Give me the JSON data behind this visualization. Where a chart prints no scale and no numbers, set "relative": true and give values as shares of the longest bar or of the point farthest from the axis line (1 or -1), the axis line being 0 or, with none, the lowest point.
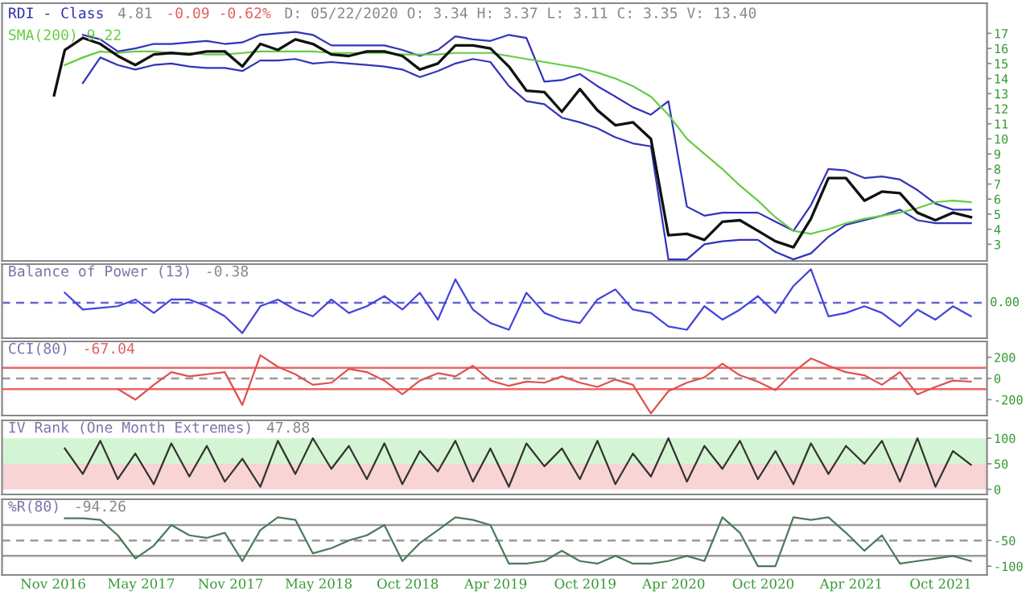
{
  "chart_data": [
    {
      "type": "line",
      "title": "RDI - Class",
      "annotations": [
        "4.81",
        "-0.09 -0.62%",
        "D: 05/22/2020 O: 3.34 H: 3.37 L: 3.11 C: 3.35 V: 13.40"
      ],
      "x": [
        "2016-11-25",
        "2017-01-01",
        "2017-02-06",
        "2017-03-14",
        "2017-04-19",
        "2017-05-27",
        "2017-07-02",
        "2017-08-08",
        "2017-09-13",
        "2017-10-20",
        "2017-11-25",
        "2018-01-01",
        "2018-02-06",
        "2018-03-14",
        "2018-04-19",
        "2018-05-27",
        "2018-07-02",
        "2018-08-08",
        "2018-09-13",
        "2018-10-20",
        "2018-11-25",
        "2019-01-01",
        "2019-02-06",
        "2019-03-14",
        "2019-04-19",
        "2019-05-27",
        "2019-07-02",
        "2019-08-08",
        "2019-09-13",
        "2019-10-20",
        "2019-11-25",
        "2020-01-01",
        "2020-02-06",
        "2020-03-14",
        "2020-04-19",
        "2020-05-27",
        "2020-07-02",
        "2020-08-08",
        "2020-09-13",
        "2020-10-20",
        "2020-11-25",
        "2021-01-01",
        "2021-02-06",
        "2021-03-14",
        "2021-04-19",
        "2021-05-27",
        "2021-07-02",
        "2021-08-08",
        "2021-09-13",
        "2021-10-20",
        "2021-11-25",
        "2022-01-01"
      ],
      "series": [
        {
          "color": "#3333bb",
          "values": [
            null,
            16.9,
            16.6,
            15.8,
            16.0,
            16.3,
            16.3,
            16.4,
            16.5,
            16.3,
            16.4,
            16.9,
            17.0,
            17.1,
            16.9,
            16.2,
            16.2,
            16.2,
            16.2,
            15.9,
            15.5,
            15.9,
            16.8,
            16.6,
            16.5,
            16.9,
            16.7,
            13.8,
            13.9,
            14.3,
            13.5,
            12.8,
            12.1,
            11.6,
            12.5,
            5.5,
            4.9,
            5.1,
            5.1,
            5.1,
            4.5,
            3.9,
            5.6,
            8.0,
            7.9,
            7.4,
            7.5,
            7.3,
            6.6,
            5.7,
            5.3,
            5.3
          ]
        },
        {
          "color": "#3333bb",
          "values": [
            null,
            13.7,
            15.4,
            14.9,
            14.6,
            14.9,
            15.0,
            14.8,
            14.7,
            14.7,
            14.5,
            15.2,
            15.2,
            15.3,
            15.0,
            15.1,
            15.0,
            14.9,
            14.8,
            14.6,
            14.1,
            14.5,
            15.0,
            15.3,
            15.1,
            13.5,
            12.5,
            12.3,
            11.4,
            11.1,
            10.7,
            10.1,
            9.7,
            9.5,
            2.0,
            2.0,
            3.0,
            3.2,
            3.3,
            3.3,
            2.5,
            2.0,
            2.4,
            3.5,
            4.3,
            4.6,
            4.9,
            5.3,
            4.6,
            4.4,
            4.4,
            4.4
          ]
        },
        {
          "name": "SMA(200) 9.22",
          "color": "#66cc44",
          "values": [
            14.9,
            15.4,
            15.8,
            15.7,
            15.8,
            15.8,
            15.7,
            15.7,
            15.6,
            15.6,
            15.7,
            15.8,
            15.8,
            15.8,
            15.8,
            15.7,
            15.7,
            15.7,
            15.7,
            15.6,
            15.6,
            15.6,
            15.7,
            15.7,
            15.7,
            15.5,
            15.3,
            15.1,
            14.9,
            14.7,
            14.4,
            14.0,
            13.5,
            12.8,
            11.6,
            10.0,
            9.0,
            8.0,
            6.9,
            5.9,
            4.8,
            3.9,
            3.7,
            4.0,
            4.4,
            4.7,
            4.9,
            5.1,
            5.4,
            5.8,
            5.9,
            5.8
          ]
        },
        {
          "color": "#111111",
          "x": [
            "2016-11-03",
            "2016-11-25",
            "2017-01-01",
            "2017-02-06",
            "2017-03-14",
            "2017-04-19",
            "2017-05-27",
            "2017-07-02",
            "2017-08-08",
            "2017-09-13",
            "2017-10-20",
            "2017-11-25",
            "2018-01-01",
            "2018-02-06",
            "2018-03-14",
            "2018-04-19",
            "2018-05-27",
            "2018-07-02",
            "2018-08-08",
            "2018-09-13",
            "2018-10-20",
            "2018-11-25",
            "2019-01-01",
            "2019-02-06",
            "2019-03-14",
            "2019-04-19",
            "2019-05-27",
            "2019-07-02",
            "2019-08-08",
            "2019-09-13",
            "2019-10-20",
            "2019-11-25",
            "2020-01-01",
            "2020-02-06",
            "2020-03-14",
            "2020-04-19",
            "2020-05-27",
            "2020-07-02",
            "2020-08-08",
            "2020-09-13",
            "2020-10-20",
            "2020-11-25",
            "2021-01-01",
            "2021-02-06",
            "2021-03-14",
            "2021-04-19",
            "2021-05-27",
            "2021-07-02",
            "2021-08-08",
            "2021-09-13",
            "2021-10-20",
            "2021-11-25",
            "2022-01-01"
          ],
          "values": [
            12.9,
            15.9,
            16.7,
            16.3,
            15.5,
            14.9,
            15.6,
            15.7,
            15.6,
            15.8,
            15.8,
            14.8,
            16.3,
            15.9,
            16.6,
            16.3,
            15.6,
            15.5,
            15.8,
            15.8,
            15.5,
            14.6,
            15.0,
            16.2,
            16.2,
            16.0,
            14.8,
            13.2,
            13.1,
            11.8,
            13.3,
            11.9,
            10.9,
            11.1,
            10.0,
            3.6,
            3.7,
            3.3,
            4.5,
            4.6,
            3.9,
            3.2,
            2.8,
            4.7,
            7.4,
            7.4,
            5.9,
            6.5,
            6.4,
            5.1,
            4.6,
            5.1,
            4.8
          ]
        }
      ],
      "xlim": [
        "2016-07-19",
        "2022-02-03"
      ],
      "ylim": [
        1.9,
        19
      ],
      "yticks": [
        3,
        4,
        5,
        6,
        7,
        8,
        9,
        10,
        11,
        12,
        13,
        14,
        15,
        16,
        17
      ],
      "tick_labels": "y"
    },
    {
      "type": "line",
      "title": "Balance of Power (13)",
      "annotations": [
        "-0.38"
      ],
      "relative": true,
      "x": [
        "2016-11-25",
        "2017-01-01",
        "2017-02-06",
        "2017-03-14",
        "2017-04-19",
        "2017-05-27",
        "2017-07-02",
        "2017-08-08",
        "2017-09-13",
        "2017-10-20",
        "2017-11-25",
        "2018-01-01",
        "2018-02-06",
        "2018-03-14",
        "2018-04-19",
        "2018-05-27",
        "2018-07-02",
        "2018-08-08",
        "2018-09-13",
        "2018-10-20",
        "2018-11-25",
        "2019-01-01",
        "2019-02-06",
        "2019-03-14",
        "2019-04-19",
        "2019-05-27",
        "2019-07-02",
        "2019-08-08",
        "2019-09-13",
        "2019-10-20",
        "2019-11-25",
        "2020-01-01",
        "2020-02-06",
        "2020-03-14",
        "2020-04-19",
        "2020-05-27",
        "2020-07-02",
        "2020-08-08",
        "2020-09-13",
        "2020-10-20",
        "2020-11-25",
        "2021-01-01",
        "2021-02-06",
        "2021-03-14",
        "2021-04-19",
        "2021-05-27",
        "2021-07-02",
        "2021-08-08",
        "2021-09-13",
        "2021-10-20",
        "2021-11-25",
        "2022-01-01"
      ],
      "series": [
        {
          "color": "#4444dd",
          "values": [
            0.3,
            -0.2,
            -0.15,
            -0.1,
            0.1,
            -0.3,
            0.1,
            0.1,
            -0.1,
            -0.4,
            -0.9,
            -0.1,
            0.1,
            -0.2,
            -0.4,
            0.1,
            -0.3,
            -0.1,
            0.2,
            -0.2,
            0.3,
            -0.5,
            0.7,
            -0.2,
            -0.6,
            -0.8,
            0.3,
            -0.3,
            -0.5,
            -0.6,
            0.1,
            0.4,
            -0.2,
            -0.3,
            -0.7,
            -0.8,
            -0.1,
            -0.5,
            -0.2,
            0.2,
            -0.3,
            0.5,
            1.0,
            -0.4,
            -0.3,
            -0.1,
            -0.3,
            -0.7,
            -0.2,
            -0.5,
            -0.1,
            -0.4
          ]
        }
      ],
      "ref_lines": [
        {
          "axis": "y",
          "value": 0,
          "label": "0.00",
          "color": "#6666cc",
          "line_style": "dashed"
        }
      ],
      "xlim": [
        "2016-07-19",
        "2022-02-03"
      ],
      "tick_labels": "y"
    },
    {
      "type": "line",
      "title": "CCI(80)",
      "annotations": [
        "-67.04"
      ],
      "x": [
        "2017-03-14",
        "2017-04-19",
        "2017-05-27",
        "2017-07-02",
        "2017-08-08",
        "2017-09-13",
        "2017-10-20",
        "2017-11-25",
        "2018-01-01",
        "2018-02-06",
        "2018-03-14",
        "2018-04-19",
        "2018-05-27",
        "2018-07-02",
        "2018-08-08",
        "2018-09-13",
        "2018-10-20",
        "2018-11-25",
        "2019-01-01",
        "2019-02-06",
        "2019-03-14",
        "2019-04-19",
        "2019-05-27",
        "2019-07-02",
        "2019-08-08",
        "2019-09-13",
        "2019-10-20",
        "2019-11-25",
        "2020-01-01",
        "2020-02-06",
        "2020-03-14",
        "2020-04-19",
        "2020-05-27",
        "2020-07-02",
        "2020-08-08",
        "2020-09-13",
        "2020-10-20",
        "2020-11-25",
        "2021-01-01",
        "2021-02-06",
        "2021-03-14",
        "2021-04-19",
        "2021-05-27",
        "2021-07-02",
        "2021-08-08",
        "2021-09-13",
        "2021-10-20",
        "2021-11-25",
        "2022-01-01"
      ],
      "series": [
        {
          "color": "#e05050",
          "values": [
            -100,
            -200,
            -60,
            60,
            20,
            40,
            60,
            -250,
            220,
            110,
            40,
            -60,
            -40,
            90,
            60,
            -20,
            -150,
            -20,
            50,
            20,
            120,
            -20,
            -70,
            -30,
            -40,
            20,
            -40,
            -80,
            -10,
            -60,
            -330,
            -120,
            -40,
            10,
            140,
            30,
            -30,
            -110,
            60,
            190,
            120,
            60,
            30,
            -60,
            60,
            -150,
            -80,
            -20,
            -30
          ]
        }
      ],
      "ref_lines": [
        {
          "axis": "y",
          "value": 100,
          "color": "#ee6666",
          "line_style": "solid"
        },
        {
          "axis": "y",
          "value": 0,
          "color": "#999999",
          "line_style": "dashed"
        },
        {
          "axis": "y",
          "value": -100,
          "color": "#ee6666",
          "line_style": "solid"
        }
      ],
      "xlim": [
        "2016-07-19",
        "2022-02-03"
      ],
      "ylim": [
        -350,
        350
      ],
      "yticks": [
        -200,
        0,
        200
      ],
      "tick_labels": "y"
    },
    {
      "type": "line",
      "title": "IV Rank (One Month Extremes)",
      "annotations": [
        "47.88"
      ],
      "x": [
        "2016-11-25",
        "2017-01-01",
        "2017-02-06",
        "2017-03-14",
        "2017-04-19",
        "2017-05-27",
        "2017-07-02",
        "2017-08-08",
        "2017-09-13",
        "2017-10-20",
        "2017-11-25",
        "2018-01-01",
        "2018-02-06",
        "2018-03-14",
        "2018-04-19",
        "2018-05-27",
        "2018-07-02",
        "2018-08-08",
        "2018-09-13",
        "2018-10-20",
        "2018-11-25",
        "2019-01-01",
        "2019-02-06",
        "2019-03-14",
        "2019-04-19",
        "2019-05-27",
        "2019-07-02",
        "2019-08-08",
        "2019-09-13",
        "2019-10-20",
        "2019-11-25",
        "2020-01-01",
        "2020-02-06",
        "2020-03-14",
        "2020-04-19",
        "2020-05-27",
        "2020-07-02",
        "2020-08-08",
        "2020-09-13",
        "2020-10-20",
        "2020-11-25",
        "2021-01-01",
        "2021-02-06",
        "2021-03-14",
        "2021-04-19",
        "2021-05-27",
        "2021-07-02",
        "2021-08-08",
        "2021-09-13",
        "2021-10-20",
        "2021-11-25",
        "2022-01-01"
      ],
      "series": [
        {
          "color": "#333333",
          "values": [
            80,
            30,
            95,
            20,
            70,
            10,
            90,
            25,
            85,
            15,
            60,
            5,
            95,
            30,
            100,
            40,
            85,
            20,
            90,
            10,
            75,
            35,
            95,
            15,
            80,
            5,
            90,
            45,
            80,
            20,
            95,
            10,
            70,
            25,
            100,
            15,
            85,
            40,
            95,
            20,
            75,
            10,
            90,
            30,
            85,
            50,
            95,
            15,
            100,
            5,
            75,
            48
          ]
        }
      ],
      "bands": [
        {
          "axis": "y",
          "from": 50,
          "to": 100,
          "color": "#d4f5d4"
        },
        {
          "axis": "y",
          "from": 0,
          "to": 50,
          "color": "#f8d4d4"
        }
      ],
      "xlim": [
        "2016-07-19",
        "2022-02-03"
      ],
      "ylim": [
        -10,
        135
      ],
      "yticks": [
        0,
        50,
        100
      ],
      "tick_labels": "y"
    },
    {
      "type": "line",
      "title": "%R(80)",
      "annotations": [
        "-94.26"
      ],
      "x": [
        "2016-11-25",
        "2017-01-01",
        "2017-02-06",
        "2017-03-14",
        "2017-04-19",
        "2017-05-27",
        "2017-07-02",
        "2017-08-08",
        "2017-09-13",
        "2017-10-20",
        "2017-11-25",
        "2018-01-01",
        "2018-02-06",
        "2018-03-14",
        "2018-04-19",
        "2018-05-27",
        "2018-07-02",
        "2018-08-08",
        "2018-09-13",
        "2018-10-20",
        "2018-11-25",
        "2019-01-01",
        "2019-02-06",
        "2019-03-14",
        "2019-04-19",
        "2019-05-27",
        "2019-07-02",
        "2019-08-08",
        "2019-09-13",
        "2019-10-20",
        "2019-11-25",
        "2020-01-01",
        "2020-02-06",
        "2020-03-14",
        "2020-04-19",
        "2020-05-27",
        "2020-07-02",
        "2020-08-08",
        "2020-09-13",
        "2020-10-20",
        "2020-11-25",
        "2021-01-01",
        "2021-02-06",
        "2021-03-14",
        "2021-04-19",
        "2021-05-27",
        "2021-07-02",
        "2021-08-08",
        "2021-09-13",
        "2021-10-20",
        "2021-11-25",
        "2022-01-01"
      ],
      "series": [
        {
          "color": "#4a7a5a",
          "values": [
            -7,
            -7,
            -10,
            -40,
            -85,
            -60,
            -20,
            -40,
            -45,
            -35,
            -90,
            -30,
            -5,
            -10,
            -75,
            -65,
            -50,
            -40,
            -20,
            -90,
            -55,
            -30,
            -5,
            -10,
            -20,
            -95,
            -95,
            -90,
            -70,
            -90,
            -95,
            -80,
            -95,
            -95,
            -90,
            -80,
            -90,
            -5,
            -35,
            -100,
            -100,
            -5,
            -10,
            -5,
            -35,
            -70,
            -40,
            -95,
            -90,
            -85,
            -80,
            -90
          ]
        }
      ],
      "ref_lines": [
        {
          "axis": "y",
          "value": -20,
          "color": "#999999",
          "line_style": "solid"
        },
        {
          "axis": "y",
          "value": -50,
          "color": "#999999",
          "line_style": "dashed"
        },
        {
          "axis": "y",
          "value": -80,
          "color": "#999999",
          "line_style": "solid"
        }
      ],
      "xlim": [
        "2016-07-19",
        "2022-02-03"
      ],
      "xticks": [
        {
          "value": "2016-11-01",
          "label": "Nov 2016"
        },
        {
          "value": "2017-05-01",
          "label": "May 2017"
        },
        {
          "value": "2017-11-01",
          "label": "Nov 2017"
        },
        {
          "value": "2018-05-01",
          "label": "May 2018"
        },
        {
          "value": "2018-10-31",
          "label": "Oct 2018"
        },
        {
          "value": "2019-04-30",
          "label": "Apr 2019"
        },
        {
          "value": "2019-10-31",
          "label": "Oct 2019"
        },
        {
          "value": "2020-04-30",
          "label": "Apr 2020"
        },
        {
          "value": "2020-10-31",
          "label": "Oct 2020"
        },
        {
          "value": "2021-04-30",
          "label": "Apr 2021"
        },
        {
          "value": "2021-10-31",
          "label": "Oct 2021"
        }
      ],
      "ylim": [
        -117,
        30
      ],
      "yticks": [
        -100,
        -50
      ]
    }
  ]
}
